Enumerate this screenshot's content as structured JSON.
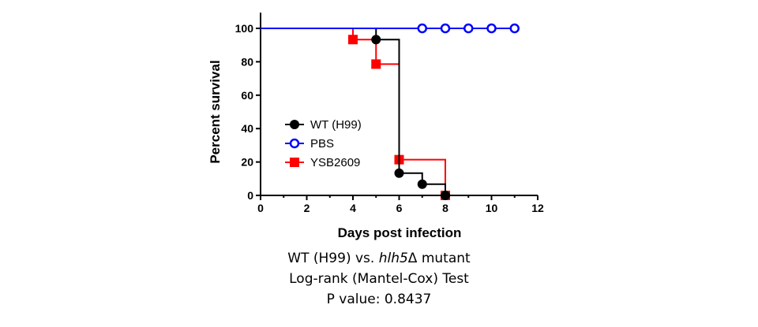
{
  "chart_data": {
    "type": "line",
    "title": "",
    "xlabel": "Days post infection",
    "ylabel": "Percent survival",
    "xlim": [
      0,
      12
    ],
    "ylim": [
      0,
      100
    ],
    "xticks": [
      0,
      2,
      4,
      6,
      8,
      10,
      12
    ],
    "yticks": [
      0,
      20,
      40,
      60,
      80,
      100
    ],
    "grid": false,
    "legend": "center-left",
    "series": [
      {
        "name": "WT (H99)",
        "color": "#000000",
        "marker": "filled-circle",
        "steps": [
          [
            0,
            100
          ],
          [
            5,
            100
          ],
          [
            5,
            93.3
          ],
          [
            6,
            93.3
          ],
          [
            6,
            13.3
          ],
          [
            7,
            13.3
          ],
          [
            7,
            6.7
          ],
          [
            8,
            6.7
          ],
          [
            8,
            0
          ]
        ],
        "markers": [
          [
            5,
            93.3
          ],
          [
            6,
            13.3
          ],
          [
            7,
            6.7
          ],
          [
            8,
            0
          ]
        ]
      },
      {
        "name": "PBS",
        "color": "#0000ff",
        "marker": "open-circle",
        "steps": [
          [
            0,
            100
          ],
          [
            11,
            100
          ]
        ],
        "markers": [
          [
            7,
            100
          ],
          [
            8,
            100
          ],
          [
            9,
            100
          ],
          [
            10,
            100
          ],
          [
            11,
            100
          ]
        ]
      },
      {
        "name": "YSB2609",
        "color": "#ff0000",
        "marker": "filled-square",
        "steps": [
          [
            0,
            100
          ],
          [
            4,
            100
          ],
          [
            4,
            93.3
          ],
          [
            5,
            93.3
          ],
          [
            5,
            78.6
          ],
          [
            6,
            78.6
          ],
          [
            6,
            21.4
          ],
          [
            8,
            21.4
          ],
          [
            8,
            0
          ]
        ],
        "markers": [
          [
            4,
            93.3
          ],
          [
            5,
            78.6
          ],
          [
            6,
            21.4
          ],
          [
            8,
            0
          ]
        ]
      }
    ]
  },
  "caption": {
    "line1_prefix": "WT (H99) vs. ",
    "line1_gene": "hlh5",
    "line1_suffix": "Δ mutant",
    "line2": "Log-rank (Mantel-Cox) Test",
    "line3": "P value: 0.8437"
  }
}
